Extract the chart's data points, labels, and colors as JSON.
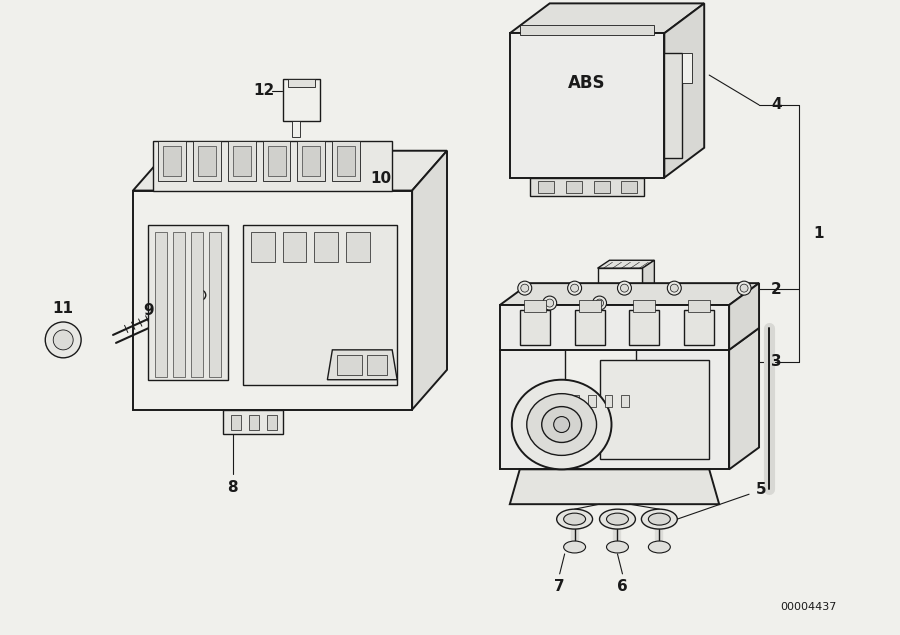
{
  "bg_color": "#f0f0ec",
  "line_color": "#1a1a1a",
  "diagram_id": "00004437",
  "lw": 1.0,
  "lw_thick": 1.4,
  "lw_thin": 0.6
}
